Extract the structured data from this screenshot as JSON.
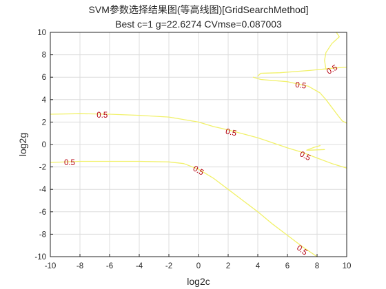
{
  "chart_data": {
    "type": "contour",
    "title": "SVM参数选择结果图(等高线图)[GridSearchMethod]",
    "subtitle": "Best c=1 g=22.6274 CVmse=0.087003",
    "xlabel": "log2c",
    "ylabel": "log2g",
    "xlim": [
      -10,
      10
    ],
    "ylim": [
      -10,
      10
    ],
    "xticks": [
      -10,
      -8,
      -6,
      -4,
      -2,
      0,
      2,
      4,
      6,
      8,
      10
    ],
    "yticks": [
      -10,
      -8,
      -6,
      -4,
      -2,
      0,
      2,
      4,
      6,
      8,
      10
    ],
    "grid": true,
    "line_color": "#f1f16a",
    "label_color": "#b5000f",
    "contours": [
      {
        "level": "0.5",
        "points": [
          [
            -10,
            2.7
          ],
          [
            -8,
            2.75
          ],
          [
            -6,
            2.7
          ],
          [
            -4,
            2.6
          ],
          [
            -2,
            2.45
          ],
          [
            0,
            2.0
          ],
          [
            1,
            1.6
          ],
          [
            2,
            1.3
          ],
          [
            4,
            0.6
          ],
          [
            6,
            -0.3
          ],
          [
            7,
            -0.7
          ],
          [
            8,
            -1.2
          ],
          [
            9,
            -1.7
          ],
          [
            10,
            -2.1
          ]
        ],
        "labels": [
          {
            "x": -6.5,
            "y": 2.65,
            "text": "0.5",
            "angle": 0
          },
          {
            "x": 2.2,
            "y": 1.1,
            "text": "0.5",
            "angle": 12
          },
          {
            "x": 7.2,
            "y": -1.0,
            "text": "0.5",
            "angle": 28
          }
        ]
      },
      {
        "level": "0.5",
        "points": [
          [
            -10,
            -1.6
          ],
          [
            -8,
            -1.5
          ],
          [
            -6,
            -1.5
          ],
          [
            -4,
            -1.5
          ],
          [
            -2,
            -1.55
          ],
          [
            -1,
            -1.7
          ],
          [
            0,
            -2.2
          ],
          [
            1,
            -3.0
          ],
          [
            2,
            -4.0
          ],
          [
            3,
            -5.0
          ],
          [
            4,
            -6.0
          ],
          [
            5,
            -7.1
          ],
          [
            6,
            -8.1
          ],
          [
            7,
            -9.1
          ],
          [
            8,
            -10.0
          ]
        ],
        "labels": [
          {
            "x": -8.7,
            "y": -1.6,
            "text": "0.5",
            "angle": 0
          },
          {
            "x": 0.0,
            "y": -2.3,
            "text": "0.5",
            "angle": 30
          },
          {
            "x": 7.0,
            "y": -9.4,
            "text": "0.5",
            "angle": 38
          }
        ]
      },
      {
        "level": "0.5",
        "points": [
          [
            8.2,
            -0.1
          ],
          [
            7.8,
            -0.25
          ],
          [
            7.3,
            -0.5
          ],
          [
            7.6,
            -0.5
          ],
          [
            8.5,
            -0.45
          ]
        ],
        "labels": []
      },
      {
        "level": "0.5",
        "points": [
          [
            3.7,
            6.0
          ],
          [
            4.2,
            5.8
          ],
          [
            6,
            5.6
          ],
          [
            7.4,
            5.2
          ],
          [
            8.2,
            4.6
          ],
          [
            8.6,
            4.0
          ],
          [
            9.0,
            3.3
          ],
          [
            9.4,
            2.6
          ],
          [
            9.7,
            2.1
          ],
          [
            10,
            1.9
          ]
        ],
        "labels": [
          {
            "x": 6.9,
            "y": 5.3,
            "text": "0.5",
            "angle": 8
          }
        ]
      },
      {
        "level": "0.5",
        "points": [
          [
            4.0,
            6.1
          ],
          [
            4.2,
            6.35
          ],
          [
            5.5,
            6.4
          ],
          [
            7.5,
            6.6
          ],
          [
            9,
            6.8
          ],
          [
            10,
            6.9
          ]
        ],
        "labels": [
          {
            "x": 9.0,
            "y": 6.7,
            "text": "0.5",
            "angle": -30
          }
        ]
      },
      {
        "level": "0.5",
        "points": [
          [
            8.6,
            6.7
          ],
          [
            8.5,
            7.5
          ],
          [
            8.6,
            8.2
          ],
          [
            9.0,
            9.0
          ],
          [
            9.5,
            9.6
          ],
          [
            9.3,
            10.0
          ]
        ],
        "labels": []
      }
    ]
  }
}
